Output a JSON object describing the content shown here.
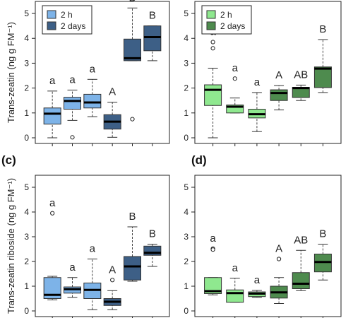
{
  "chart_data": [
    {
      "type": "box",
      "panel": "",
      "ylabel": "Trans-zeatin (ng g FM⁻¹)",
      "ylim": [
        0,
        5.2
      ],
      "yticks": [
        "0",
        "1",
        "2",
        "3",
        "4",
        "5"
      ],
      "legend": {
        "placement": "top-left",
        "entries": [
          "2 h",
          "2 days"
        ]
      },
      "colors": {
        "2 h": "#7db3e8",
        "2 days": "#3d5f86"
      },
      "boxes": [
        {
          "group": "2 h",
          "min": 0.0,
          "q1": 0.55,
          "median": 0.97,
          "q3": 1.2,
          "max": 1.88,
          "outliers": [],
          "label": "a"
        },
        {
          "group": "2 h",
          "min": 0.7,
          "q1": 1.15,
          "median": 1.48,
          "q3": 1.63,
          "max": 1.92,
          "outliers": [
            0.02
          ],
          "label": "a"
        },
        {
          "group": "2 h",
          "min": 0.85,
          "q1": 1.2,
          "median": 1.42,
          "q3": 1.75,
          "max": 2.35,
          "outliers": [],
          "label": "a"
        },
        {
          "group": "2 days",
          "min": 0.02,
          "q1": 0.35,
          "median": 0.65,
          "q3": 0.93,
          "max": 1.43,
          "outliers": [],
          "label": "A"
        },
        {
          "group": "2 days",
          "min": 3.1,
          "q1": 3.1,
          "median": 3.2,
          "q3": 3.97,
          "max": 5.22,
          "outliers": [
            0.75
          ],
          "label": "B"
        },
        {
          "group": "2 days",
          "min": 3.1,
          "q1": 3.5,
          "median": 4.05,
          "q3": 4.5,
          "max": 4.5,
          "outliers": [],
          "label": "B"
        }
      ]
    },
    {
      "type": "box",
      "panel": "",
      "ylabel": "",
      "ylim": [
        0,
        5.2
      ],
      "yticks": [
        "0",
        "1",
        "2",
        "3",
        "4",
        "5"
      ],
      "legend": {
        "placement": "top-left",
        "entries": [
          "2 h",
          "2 days"
        ]
      },
      "colors": {
        "2 h": "#8fe88f",
        "2 days": "#4e8b4e"
      },
      "boxes": [
        {
          "group": "2 h",
          "min": 0.0,
          "q1": 1.3,
          "median": 1.93,
          "q3": 2.13,
          "max": 2.8,
          "outliers": [
            3.85,
            3.6
          ],
          "label": "a"
        },
        {
          "group": "2 h",
          "min": 1.0,
          "q1": 1.0,
          "median": 1.25,
          "q3": 1.32,
          "max": 1.6,
          "outliers": [
            2.38
          ],
          "label": "a"
        },
        {
          "group": "2 h",
          "min": 0.25,
          "q1": 0.8,
          "median": 0.95,
          "q3": 1.15,
          "max": 1.82,
          "outliers": [],
          "label": "a"
        },
        {
          "group": "2 days",
          "min": 1.12,
          "q1": 1.5,
          "median": 1.8,
          "q3": 1.93,
          "max": 2.1,
          "outliers": [],
          "label": "A"
        },
        {
          "group": "2 days",
          "min": 1.5,
          "q1": 1.62,
          "median": 2.0,
          "q3": 2.03,
          "max": 2.12,
          "outliers": [],
          "label": "AB"
        },
        {
          "group": "2 days",
          "min": 1.82,
          "q1": 2.02,
          "median": 2.78,
          "q3": 2.85,
          "max": 3.95,
          "outliers": [],
          "label": "B"
        }
      ]
    },
    {
      "type": "box",
      "panel": "(c)",
      "ylabel": "Trans-zeatin riboside (ng g FM⁻¹)",
      "ylim": [
        0,
        5.2
      ],
      "yticks": [
        "0",
        "1",
        "2",
        "3",
        "4",
        "5"
      ],
      "colors": {
        "2 h": "#7db3e8",
        "2 days": "#3d5f86"
      },
      "boxes": [
        {
          "group": "2 h",
          "min": 0.45,
          "q1": 0.5,
          "median": 0.65,
          "q3": 1.35,
          "max": 1.4,
          "outliers": [
            3.95
          ],
          "label": "a"
        },
        {
          "group": "2 h",
          "min": 0.55,
          "q1": 0.72,
          "median": 0.88,
          "q3": 0.97,
          "max": 1.35,
          "outliers": [],
          "label": "a"
        },
        {
          "group": "2 h",
          "min": 0.05,
          "q1": 0.5,
          "median": 0.85,
          "q3": 1.13,
          "max": 2.1,
          "outliers": [],
          "label": "a"
        },
        {
          "group": "2 days",
          "min": 0.05,
          "q1": 0.22,
          "median": 0.37,
          "q3": 0.5,
          "max": 0.82,
          "outliers": [
            1.25
          ],
          "label": "A"
        },
        {
          "group": "2 days",
          "min": 1.2,
          "q1": 1.25,
          "median": 1.8,
          "q3": 2.2,
          "max": 3.4,
          "outliers": [],
          "label": "B"
        },
        {
          "group": "2 days",
          "min": 1.8,
          "q1": 2.25,
          "median": 2.35,
          "q3": 2.62,
          "max": 2.7,
          "outliers": [],
          "label": "B"
        }
      ]
    },
    {
      "type": "box",
      "panel": "(d)",
      "ylabel": "",
      "ylim": [
        0,
        5.2
      ],
      "yticks": [
        "0",
        "1",
        "2",
        "3",
        "4",
        "5"
      ],
      "colors": {
        "2 h": "#8fe88f",
        "2 days": "#4e8b4e"
      },
      "boxes": [
        {
          "group": "2 h",
          "min": 0.65,
          "q1": 0.7,
          "median": 0.8,
          "q3": 1.35,
          "max": 1.35,
          "outliers": [
            2.52,
            2.48
          ],
          "label": "a"
        },
        {
          "group": "2 h",
          "min": 0.35,
          "q1": 0.35,
          "median": 0.72,
          "q3": 0.85,
          "max": 1.32,
          "outliers": [],
          "label": "a"
        },
        {
          "group": "2 h",
          "min": 0.55,
          "q1": 0.58,
          "median": 0.7,
          "q3": 0.77,
          "max": 0.83,
          "outliers": [],
          "label": "a"
        },
        {
          "group": "2 days",
          "min": 0.3,
          "q1": 0.52,
          "median": 0.75,
          "q3": 1.0,
          "max": 1.35,
          "outliers": [
            2.1
          ],
          "label": "A"
        },
        {
          "group": "2 days",
          "min": 0.82,
          "q1": 0.9,
          "median": 1.1,
          "q3": 1.55,
          "max": 2.45,
          "outliers": [],
          "label": "AB"
        },
        {
          "group": "2 days",
          "min": 1.25,
          "q1": 1.58,
          "median": 1.98,
          "q3": 2.3,
          "max": 2.7,
          "outliers": [],
          "label": "B"
        }
      ]
    }
  ]
}
